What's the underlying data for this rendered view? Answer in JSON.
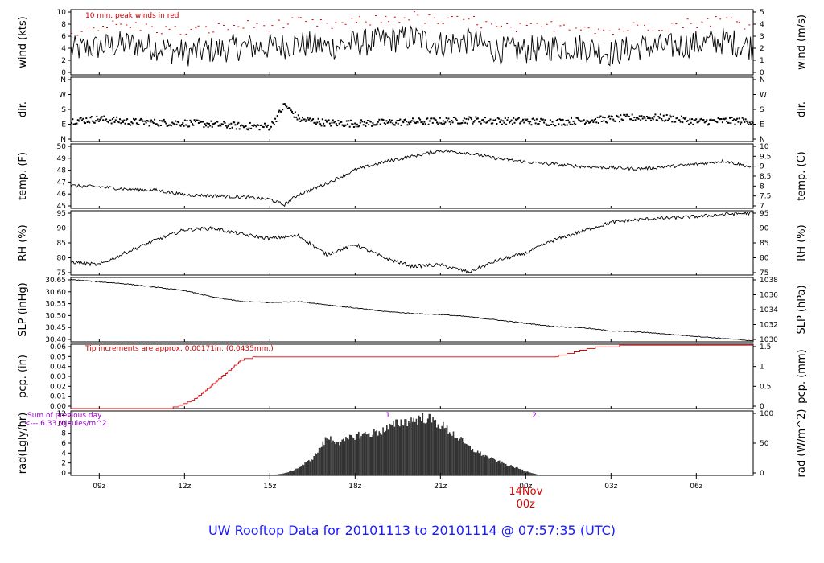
{
  "title": "UW Rooftop Data for 20101113  to  20101114 @ 07:57:35  (UTC)",
  "date_marker": {
    "day": "14Nov",
    "hour": "00z"
  },
  "x_ticks": [
    "09z",
    "12z",
    "15z",
    "18z",
    "21z",
    "00z",
    "03z",
    "06z"
  ],
  "colors": {
    "line": "#000000",
    "peak": "#dd0000",
    "precip": "#dd0000",
    "note_red": "#cc0000",
    "note_purple": "#9900cc",
    "title": "#1a1aff"
  },
  "chart_data": [
    {
      "id": "wind",
      "type": "line",
      "ylabel": "wind (kts)",
      "y2label": "wind (m/s)",
      "yticks": [
        "0",
        "2",
        "4",
        "6",
        "8",
        "10"
      ],
      "y2ticks": [
        "0",
        "1",
        "2",
        "3",
        "4",
        "5"
      ],
      "ylim": [
        0,
        10.5
      ],
      "annotation": "10 min. peak winds in red",
      "series": [
        {
          "x": [
            0,
            1,
            2,
            3,
            4,
            5,
            6,
            7,
            8,
            9,
            10,
            11,
            12,
            13,
            14,
            15,
            16,
            17,
            18,
            19,
            20,
            21,
            22,
            23,
            24
          ],
          "values": [
            4,
            4.5,
            5,
            4.5,
            3.5,
            4,
            4.5,
            4.5,
            5,
            4.5,
            5,
            5.5,
            6,
            5,
            5.5,
            4,
            4,
            4.5,
            4.5,
            3.5,
            4.5,
            4.5,
            5,
            5.5,
            4.5
          ]
        },
        {
          "x": [
            0,
            1,
            2,
            3,
            4,
            5,
            6,
            7,
            8,
            9,
            10,
            11,
            12,
            13,
            14,
            15,
            16,
            17,
            18,
            19,
            20,
            21,
            22,
            23,
            24
          ],
          "values": [
            7,
            8,
            8,
            7.5,
            7,
            7.5,
            8,
            8,
            8.5,
            8,
            8.5,
            9,
            9.5,
            8.5,
            9,
            7.5,
            7.5,
            8,
            8,
            7,
            8,
            8,
            8.5,
            9,
            8
          ]
        }
      ]
    },
    {
      "id": "dir",
      "type": "scatter",
      "ylabel": "dir.",
      "y2label": "dir.",
      "yticks": [
        "N",
        "E",
        "S",
        "W",
        "N"
      ],
      "y2ticks": [
        "N",
        "E",
        "S",
        "W",
        "N"
      ],
      "ylim": [
        0,
        360
      ],
      "series": [
        {
          "x": [
            0,
            1,
            2,
            3,
            4,
            5,
            6,
            7,
            7.5,
            8,
            9,
            10,
            11,
            12,
            13,
            14,
            15,
            16,
            17,
            18,
            19,
            20,
            21,
            22,
            23,
            24
          ],
          "values": [
            120,
            130,
            115,
            110,
            108,
            100,
            90,
            88,
            210,
            130,
            108,
            105,
            110,
            115,
            118,
            125,
            120,
            118,
            112,
            122,
            130,
            140,
            135,
            115,
            120,
            118
          ]
        }
      ]
    },
    {
      "id": "temp",
      "type": "line",
      "ylabel": "temp. (F)",
      "y2label": "temp. (C)",
      "yticks": [
        "45",
        "46",
        "47",
        "48",
        "49",
        "50"
      ],
      "y2ticks": [
        "7",
        "7.5",
        "8",
        "8.5",
        "9",
        "9.5",
        "10"
      ],
      "ylim": [
        44.6,
        50.3
      ],
      "series": [
        {
          "x": [
            0,
            1,
            2,
            3,
            4,
            5,
            6,
            7,
            7.5,
            8,
            9,
            10,
            11,
            12,
            13,
            14,
            15,
            16,
            17,
            18,
            19,
            20,
            21,
            22,
            23,
            24
          ],
          "values": [
            46.6,
            46.5,
            46.3,
            46.2,
            45.8,
            45.7,
            45.6,
            45.4,
            44.9,
            45.8,
            46.8,
            48,
            48.7,
            49.2,
            49.7,
            49.5,
            49,
            48.7,
            48.5,
            48.3,
            48.2,
            48.1,
            48.3,
            48.5,
            48.8,
            48.2
          ]
        }
      ]
    },
    {
      "id": "rh",
      "type": "line",
      "ylabel": "RH (%)",
      "y2label": "RH (%)",
      "yticks": [
        "75",
        "80",
        "85",
        "90",
        "95"
      ],
      "y2ticks": [
        "75",
        "80",
        "85",
        "90",
        "95"
      ],
      "ylim": [
        74,
        96
      ],
      "series": [
        {
          "x": [
            0,
            1,
            2,
            3,
            4,
            5,
            6,
            7,
            8,
            9,
            10,
            11,
            12,
            13,
            14,
            15,
            16,
            17,
            18,
            19,
            20,
            21,
            22,
            23,
            24
          ],
          "values": [
            78.5,
            77.5,
            82,
            86,
            89.5,
            90,
            88,
            86.5,
            87.5,
            81,
            84.5,
            80,
            77,
            77.5,
            75,
            79,
            81.5,
            86,
            89,
            92,
            93,
            93.5,
            94,
            94.8,
            95.2
          ]
        }
      ]
    },
    {
      "id": "slp",
      "type": "line",
      "ylabel": "SLP (inHg)",
      "y2label": "SLP (hPa)",
      "yticks": [
        "30.40",
        "30.45",
        "30.50",
        "30.55",
        "30.60",
        "30.65"
      ],
      "y2ticks": [
        "1030",
        "1032",
        "1034",
        "1036",
        "1038"
      ],
      "ylim": [
        30.38,
        30.675
      ],
      "series": [
        {
          "x": [
            0,
            1,
            2,
            3,
            4,
            5,
            6,
            7,
            8,
            9,
            10,
            11,
            12,
            13,
            14,
            15,
            16,
            17,
            18,
            19,
            20,
            21,
            22,
            23,
            24
          ],
          "values": [
            30.665,
            30.655,
            30.645,
            30.63,
            30.615,
            30.585,
            30.565,
            30.56,
            30.565,
            30.55,
            30.535,
            30.52,
            30.51,
            30.505,
            30.495,
            30.48,
            30.465,
            30.45,
            30.445,
            30.43,
            30.425,
            30.415,
            30.405,
            30.395,
            30.385
          ]
        }
      ]
    },
    {
      "id": "pcp",
      "type": "step",
      "ylabel": "pcp. (in)",
      "y2label": "pcp. (mm)",
      "yticks": [
        "0.00",
        "0.01",
        "0.02",
        "0.03",
        "0.04",
        "0.05",
        "0.06"
      ],
      "y2ticks": [
        "0",
        "0.5",
        "1",
        "1.5"
      ],
      "ylim": [
        0,
        0.066
      ],
      "annotation": "Tip increments are approx. 0.00171in. (0.0435mm.)",
      "series": [
        {
          "x": [
            0,
            3.5,
            4.2,
            4.6,
            5.2,
            5.6,
            6,
            6.5,
            17,
            17.5,
            18,
            18.5,
            19,
            19.5,
            24
          ],
          "values": [
            0,
            0,
            0.007,
            0.015,
            0.03,
            0.04,
            0.05,
            0.053,
            0.053,
            0.056,
            0.06,
            0.063,
            0.063,
            0.065,
            0.065
          ]
        }
      ]
    },
    {
      "id": "rad",
      "type": "area",
      "ylabel": "rad(Lgly/hr)",
      "y2label": "rad (W/m^2)",
      "yticks": [
        "0",
        "2",
        "4",
        "6",
        "8",
        "10",
        "12"
      ],
      "y2ticks": [
        "0",
        "50",
        "100"
      ],
      "ylim": [
        0,
        12.2
      ],
      "annotation_left_1": "Sum of previous day",
      "annotation_left_2": "<--- 6.33 MJoules/m^2",
      "marker_1": "1",
      "marker_2": "2",
      "series": [
        {
          "x": [
            7,
            7.5,
            8,
            8.5,
            9,
            9.5,
            10,
            10.5,
            11,
            11.5,
            12,
            12.5,
            13,
            13.5,
            14,
            14.5,
            15,
            15.5,
            16,
            16.5
          ],
          "values": [
            0,
            0.4,
            1.5,
            3.5,
            7.5,
            6.5,
            8,
            8.3,
            9,
            10.5,
            11,
            11.5,
            10,
            8,
            5.5,
            4,
            2.8,
            1.8,
            0.8,
            0
          ]
        }
      ]
    }
  ]
}
